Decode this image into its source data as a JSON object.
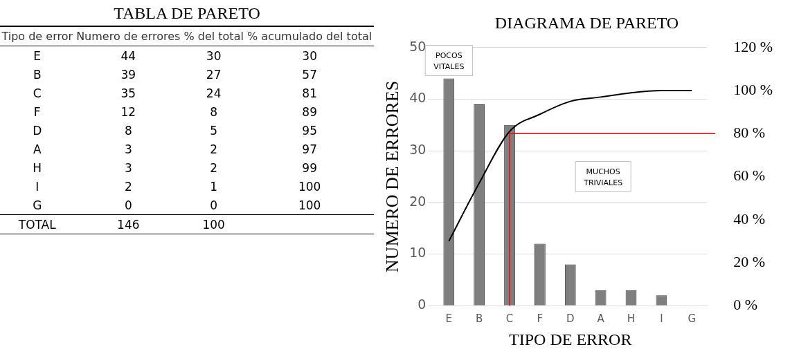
{
  "chart_data": [
    {
      "type": "other",
      "data_labels": true,
      "title": "TABLA DE PARETO",
      "xlabel": "Tipo de error",
      "categories": [
        "E",
        "B",
        "C",
        "F",
        "D",
        "A",
        "H",
        "I",
        "G",
        "TOTAL"
      ],
      "series": [
        {
          "name": "Numero de errores",
          "values": [
            44,
            39,
            35,
            12,
            8,
            3,
            3,
            2,
            0,
            146
          ]
        },
        {
          "name": "% del total",
          "values": [
            30,
            27,
            24,
            8,
            5,
            2,
            2,
            1,
            0,
            100
          ]
        },
        {
          "name": "% acumulado del total",
          "values": [
            30,
            57,
            81,
            89,
            95,
            97,
            99,
            100,
            100,
            null
          ]
        }
      ]
    },
    {
      "type": "bar",
      "title": "DIAGRAMA DE PARETO",
      "xlabel": "TIPO DE ERROR",
      "ylabel": "NUMERO DE ERRORES",
      "categories": [
        "E",
        "B",
        "C",
        "F",
        "D",
        "A",
        "H",
        "I",
        "G"
      ],
      "ylim": [
        0,
        50
      ],
      "yticks": [
        0,
        10,
        20,
        30,
        40,
        50
      ],
      "y2lim": [
        0,
        120
      ],
      "y2ticks": [
        {
          "value": 0,
          "label": "0 %"
        },
        {
          "value": 20,
          "label": "20 %"
        },
        {
          "value": 40,
          "label": "40 %"
        },
        {
          "value": 60,
          "label": "60 %"
        },
        {
          "value": 80,
          "label": "80 %"
        },
        {
          "value": 100,
          "label": "100 %"
        },
        {
          "value": 120,
          "label": "120 %"
        }
      ],
      "grid": "y",
      "legend": false,
      "marker": "none",
      "series": [
        {
          "type": "bar",
          "color": "#7f7f7f",
          "values": [
            44,
            39,
            35,
            12,
            8,
            3,
            3,
            2,
            0
          ]
        },
        {
          "type": "line",
          "axis": "y2",
          "color": "#000000",
          "values": [
            30,
            57,
            81,
            89,
            95,
            97,
            99,
            100,
            100
          ]
        }
      ],
      "ref_lines": [
        {
          "axis": "y2",
          "value": 80,
          "color": "#ff0000"
        },
        {
          "axis": "x",
          "value": "C",
          "color": "#ff0000"
        }
      ],
      "annotations": [
        "POCOS VITALES",
        "MUCHOS TRIVIALES"
      ]
    }
  ]
}
